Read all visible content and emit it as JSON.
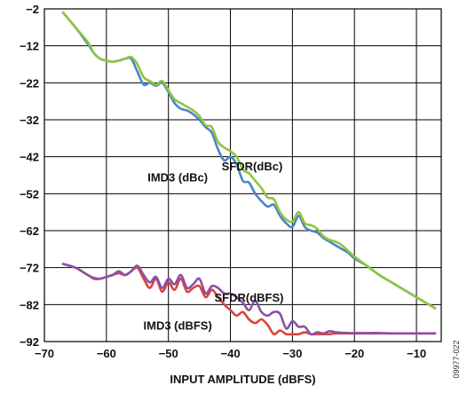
{
  "chart_data": {
    "type": "line",
    "xlabel": "INPUT AMPLITUDE (dBFS)",
    "ylabel": "",
    "xlim": [
      -70,
      -6
    ],
    "ylim": [
      -92,
      -2
    ],
    "xticks": [
      -70,
      -60,
      -50,
      -40,
      -30,
      -20,
      -10
    ],
    "yticks": [
      -2,
      -12,
      -22,
      -32,
      -42,
      -52,
      -62,
      -72,
      -82,
      -92
    ],
    "grid": true,
    "figure_id": "09977-022",
    "colors": {
      "SFDR(dBc)": "#8dc63f",
      "IMD3 (dBc)": "#4a86c8",
      "SFDR(dBFS)": "#8b4fa6",
      "IMD3 (dBFS)": "#d9443a"
    },
    "annotations": [
      {
        "text": "IMD3 (dBc)",
        "series": "IMD3 (dBc)",
        "x": -48.5,
        "y": -47.5
      },
      {
        "text": "SFDR(dBc)",
        "series": "SFDR(dBc)",
        "x": -36.5,
        "y": -44.5
      },
      {
        "text": "SFDR(dBFS)",
        "series": "SFDR(dBFS)",
        "x": -37,
        "y": -80
      },
      {
        "text": "IMD3 (dBFS)",
        "series": "IMD3 (dBFS)",
        "x": -48.5,
        "y": -87.5
      }
    ],
    "series": [
      {
        "name": "SFDR(dBc)",
        "x": [
          -67,
          -65,
          -63,
          -62,
          -61,
          -60,
          -59,
          -58,
          -57,
          -56,
          -55,
          -54,
          -53,
          -52,
          -51,
          -50,
          -49,
          -48,
          -47,
          -46,
          -45,
          -44,
          -43,
          -42,
          -41,
          -40,
          -39,
          -38,
          -37,
          -36,
          -35,
          -34,
          -33,
          -32,
          -31,
          -30,
          -29,
          -28,
          -27,
          -26,
          -25,
          -24,
          -23,
          -22,
          -21,
          -20,
          -18,
          -16,
          -14,
          -12,
          -10,
          -8,
          -7
        ],
        "y": [
          -3,
          -7,
          -11,
          -14,
          -15.5,
          -16,
          -16.3,
          -16,
          -15.5,
          -15,
          -17,
          -20.5,
          -21.5,
          -22.5,
          -21.5,
          -24,
          -26.5,
          -27.5,
          -28.5,
          -29.5,
          -31,
          -33.5,
          -34,
          -38,
          -39.5,
          -40.5,
          -42,
          -45.5,
          -46.5,
          -48.5,
          -50.5,
          -53,
          -53.5,
          -57,
          -59,
          -59.5,
          -57,
          -60,
          -60.5,
          -61.5,
          -63.5,
          -64.5,
          -65,
          -66,
          -67.5,
          -69,
          -71.5,
          -74,
          -76,
          -78,
          -80,
          -82,
          -83
        ]
      },
      {
        "name": "IMD3 (dBc)",
        "x": [
          -67,
          -65,
          -63,
          -62,
          -61,
          -60,
          -59,
          -58,
          -57,
          -56,
          -55,
          -54,
          -53,
          -52,
          -51,
          -50,
          -49,
          -48,
          -47,
          -46,
          -45,
          -44,
          -43,
          -42,
          -41,
          -40,
          -39,
          -38,
          -37,
          -36,
          -35,
          -34,
          -33,
          -32,
          -31,
          -30,
          -29,
          -28,
          -27,
          -26,
          -25,
          -24,
          -23,
          -22,
          -21,
          -20,
          -18,
          -16,
          -14,
          -12,
          -10,
          -8,
          -7
        ],
        "y": [
          -3,
          -7,
          -11.5,
          -14,
          -15.5,
          -16,
          -16.3,
          -16,
          -15.5,
          -15.5,
          -19,
          -22.5,
          -22,
          -22.8,
          -22,
          -24.5,
          -27.5,
          -29,
          -29.5,
          -30.5,
          -32,
          -34,
          -35.5,
          -40,
          -43,
          -42,
          -44,
          -48.5,
          -49,
          -52,
          -54,
          -55.5,
          -55,
          -58,
          -60,
          -61,
          -58,
          -61,
          -62,
          -62.5,
          -64,
          -65,
          -66,
          -67,
          -68,
          -69.5,
          -71.5,
          -74,
          -76,
          -78,
          -80,
          -82,
          -83
        ]
      },
      {
        "name": "SFDR(dBFS)",
        "x": [
          -67,
          -65,
          -63,
          -62,
          -61,
          -60,
          -59,
          -58,
          -57,
          -56,
          -55,
          -54,
          -53,
          -52,
          -51,
          -50,
          -49,
          -48,
          -47,
          -46,
          -45,
          -44,
          -43,
          -42,
          -41,
          -40,
          -39,
          -38,
          -37,
          -36,
          -35,
          -34,
          -33,
          -32,
          -31,
          -30,
          -29,
          -28,
          -27,
          -26,
          -25,
          -24,
          -23,
          -22,
          -21,
          -20,
          -18,
          -16,
          -14,
          -12,
          -10,
          -8,
          -7
        ],
        "y": [
          -71,
          -72,
          -74,
          -74.8,
          -75,
          -74.5,
          -74,
          -73,
          -74,
          -73,
          -71.5,
          -74,
          -76,
          -74.5,
          -77.5,
          -75,
          -76.5,
          -74,
          -77.5,
          -76.5,
          -75,
          -79,
          -77,
          -77.5,
          -79,
          -79,
          -80,
          -81.5,
          -83.5,
          -81,
          -84,
          -85,
          -84,
          -84.5,
          -88.5,
          -86.5,
          -88,
          -88,
          -90,
          -89.5,
          -89.8,
          -89.2,
          -89.5,
          -89.6,
          -89.7,
          -89.7,
          -89.7,
          -89.7,
          -89.8,
          -89.8,
          -89.8,
          -89.8,
          -89.8
        ]
      },
      {
        "name": "IMD3 (dBFS)",
        "x": [
          -67,
          -65,
          -63,
          -62,
          -61,
          -60,
          -59,
          -58,
          -57,
          -56,
          -55,
          -54,
          -53,
          -52,
          -51,
          -50,
          -49,
          -48,
          -47,
          -46,
          -45,
          -44,
          -43,
          -42,
          -41,
          -40,
          -39,
          -38,
          -37,
          -36,
          -35,
          -34,
          -33,
          -32,
          -31,
          -30,
          -29,
          -28,
          -27,
          -26,
          -25,
          -24,
          -23,
          -22,
          -21,
          -20,
          -18,
          -16,
          -14,
          -12,
          -10,
          -8,
          -7
        ],
        "y": [
          -71,
          -72,
          -74,
          -75,
          -75,
          -74.5,
          -74,
          -73.5,
          -74,
          -73,
          -72,
          -75,
          -77.5,
          -75,
          -78.5,
          -76,
          -78,
          -75,
          -78.5,
          -77.5,
          -77,
          -80,
          -78,
          -80,
          -82,
          -83.5,
          -85,
          -84,
          -86,
          -87,
          -86,
          -87.5,
          -90,
          -89,
          -90,
          -90,
          -90,
          -89.5,
          -90,
          -90,
          -90,
          -90,
          -89.8,
          -89.8,
          -89.8,
          -89.8,
          -89.8,
          -89.8,
          -89.8,
          -89.8,
          -89.8,
          -89.8,
          -89.8
        ]
      }
    ]
  }
}
